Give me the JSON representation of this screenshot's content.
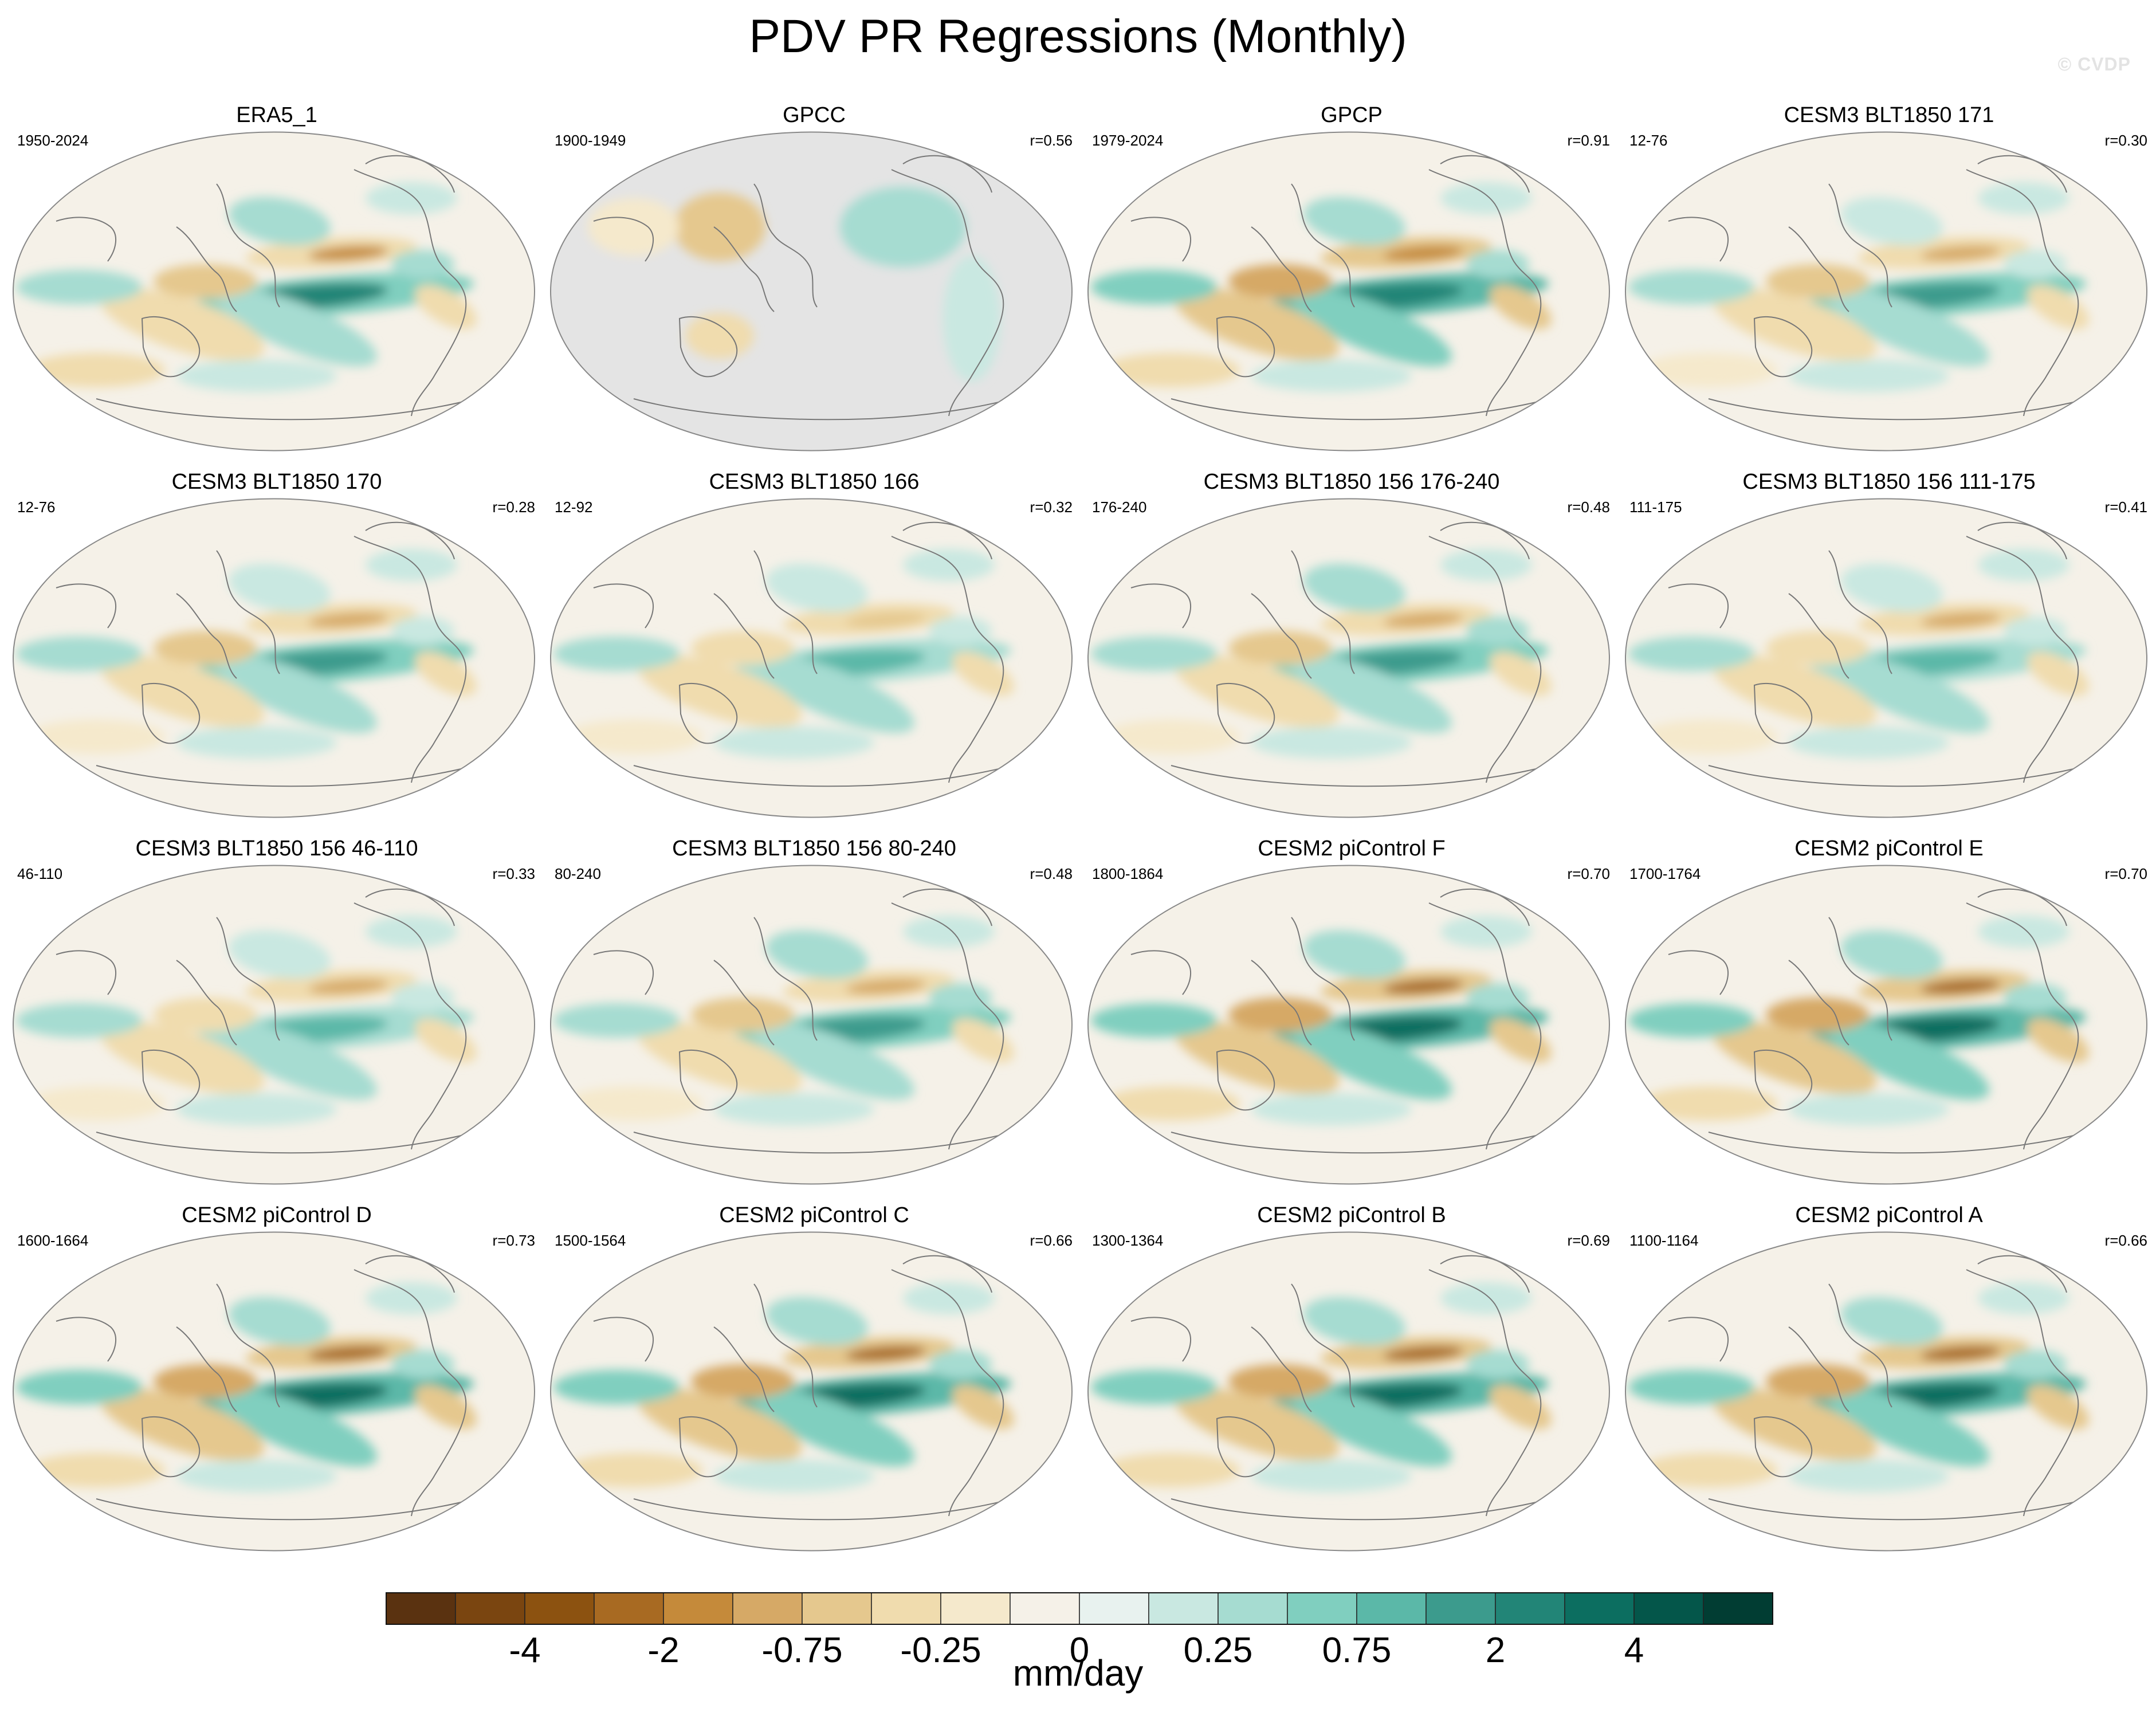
{
  "page": {
    "title": "PDV PR Regressions (Monthly)",
    "watermark": "© CVDP"
  },
  "chart_data": {
    "type": "heatmap",
    "title": "PDV PR Regressions (Monthly)",
    "variable": "Precipitation regression onto Pacific Decadal Variability index",
    "colorbar": {
      "units": "mm/day",
      "tick_labels": [
        "-4",
        "-2",
        "-0.75",
        "-0.25",
        "0",
        "0.25",
        "0.75",
        "2",
        "4"
      ],
      "colors": [
        "#5a3210",
        "#7a4510",
        "#8c5210",
        "#a86a22",
        "#c58a3a",
        "#d6a966",
        "#e5c88e",
        "#f0dcae",
        "#f5e9cc",
        "#f5f1e8",
        "#e8f2ef",
        "#c9e8e1",
        "#a6dcd1",
        "#80cfbf",
        "#5bb8a8",
        "#3c9b8d",
        "#228577",
        "#0c6e60",
        "#04564a",
        "#013d33"
      ]
    },
    "panels": [
      {
        "title": "ERA5_1",
        "period": "1950-2024",
        "corr": "",
        "intensity": 0.8,
        "style": "obs"
      },
      {
        "title": "GPCC",
        "period": "1900-1949",
        "corr": "r=0.56",
        "intensity": 0.3,
        "style": "land"
      },
      {
        "title": "GPCP",
        "period": "1979-2024",
        "corr": "r=0.91",
        "intensity": 0.9,
        "style": "obs"
      },
      {
        "title": "CESM3 BLT1850 171",
        "period": "12-76",
        "corr": "r=0.30",
        "intensity": 0.7,
        "style": "model"
      },
      {
        "title": "CESM3 BLT1850 170",
        "period": "12-76",
        "corr": "r=0.28",
        "intensity": 0.7,
        "style": "model"
      },
      {
        "title": "CESM3 BLT1850 166",
        "period": "12-92",
        "corr": "r=0.32",
        "intensity": 0.55,
        "style": "model"
      },
      {
        "title": "CESM3 BLT1850 156 176-240",
        "period": "176-240",
        "corr": "r=0.48",
        "intensity": 0.75,
        "style": "model"
      },
      {
        "title": "CESM3 BLT1850 156 111-175",
        "period": "111-175",
        "corr": "r=0.41",
        "intensity": 0.6,
        "style": "model"
      },
      {
        "title": "CESM3 BLT1850 156 46-110",
        "period": "46-110",
        "corr": "r=0.33",
        "intensity": 0.6,
        "style": "model"
      },
      {
        "title": "CESM3 BLT1850 156 80-240",
        "period": "80-240",
        "corr": "r=0.48",
        "intensity": 0.75,
        "style": "model"
      },
      {
        "title": "CESM2 piControl F",
        "period": "1800-1864",
        "corr": "r=0.70",
        "intensity": 1.0,
        "style": "strong"
      },
      {
        "title": "CESM2 piControl E",
        "period": "1700-1764",
        "corr": "r=0.70",
        "intensity": 0.95,
        "style": "strong"
      },
      {
        "title": "CESM2 piControl D",
        "period": "1600-1664",
        "corr": "r=0.73",
        "intensity": 0.95,
        "style": "strong"
      },
      {
        "title": "CESM2 piControl C",
        "period": "1500-1564",
        "corr": "r=0.66",
        "intensity": 1.0,
        "style": "strong"
      },
      {
        "title": "CESM2 piControl B",
        "period": "1300-1364",
        "corr": "r=0.69",
        "intensity": 0.95,
        "style": "strong"
      },
      {
        "title": "CESM2 piControl A",
        "period": "1100-1164",
        "corr": "r=0.66",
        "intensity": 0.95,
        "style": "strong"
      }
    ]
  }
}
